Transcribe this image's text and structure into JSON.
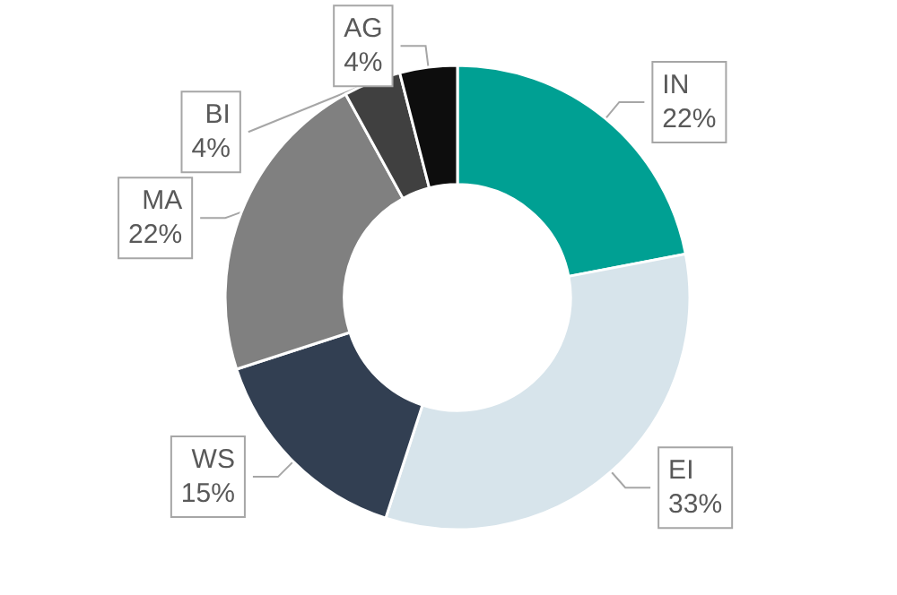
{
  "chart_data": {
    "type": "donut",
    "categories": [
      "IN",
      "EI",
      "WS",
      "MA",
      "BI",
      "AG"
    ],
    "values": [
      22,
      33,
      15,
      22,
      4,
      4
    ],
    "value_labels": [
      "22%",
      "33%",
      "15%",
      "22%",
      "4%",
      "4%"
    ],
    "colors": [
      "#00a093",
      "#d7e4eb",
      "#323f52",
      "#808080",
      "#404040",
      "#0d0d0d"
    ],
    "legend": false
  }
}
